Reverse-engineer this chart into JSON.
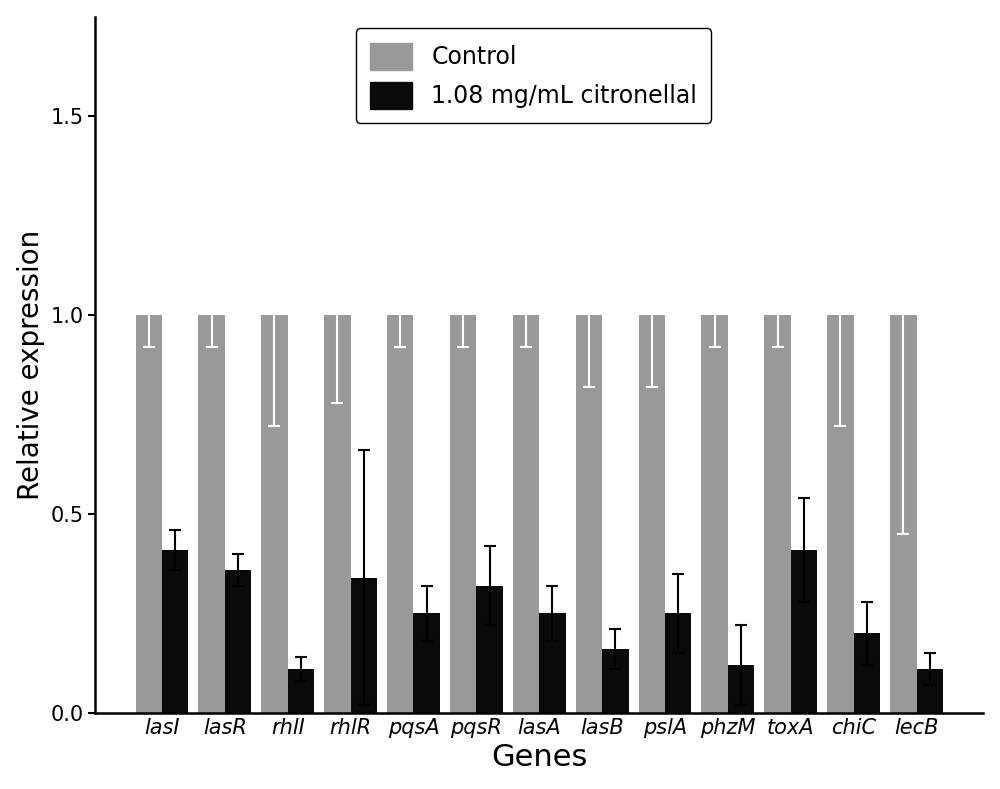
{
  "genes": [
    "lasI",
    "lasR",
    "rhlI",
    "rhlR",
    "pqsA",
    "pqsR",
    "lasA",
    "lasB",
    "pslA",
    "phzM",
    "toxA",
    "chiC",
    "lecB"
  ],
  "control_values": [
    1.0,
    1.0,
    1.0,
    1.0,
    1.0,
    1.0,
    1.0,
    1.0,
    1.0,
    1.0,
    1.0,
    1.0,
    1.0
  ],
  "control_errors": [
    0.08,
    0.08,
    0.28,
    0.22,
    0.08,
    0.08,
    0.08,
    0.18,
    0.18,
    0.08,
    0.08,
    0.28,
    0.55
  ],
  "treatment_values": [
    0.41,
    0.36,
    0.11,
    0.34,
    0.25,
    0.32,
    0.25,
    0.16,
    0.25,
    0.12,
    0.41,
    0.2,
    0.11
  ],
  "treatment_errors": [
    0.05,
    0.04,
    0.03,
    0.32,
    0.07,
    0.1,
    0.07,
    0.05,
    0.1,
    0.1,
    0.13,
    0.08,
    0.04
  ],
  "control_color": "#999999",
  "treatment_color": "#0a0a0a",
  "bar_width": 0.42,
  "ylabel": "Relative expression",
  "xlabel": "Genes",
  "ylim": [
    0.0,
    1.75
  ],
  "yticks": [
    0.0,
    0.5,
    1.0,
    1.5
  ],
  "legend_control": "Control",
  "legend_treatment": "1.08 mg/mL citronellal",
  "background_color": "#ffffff",
  "label_fontsize": 20,
  "tick_fontsize": 15,
  "legend_fontsize": 17
}
